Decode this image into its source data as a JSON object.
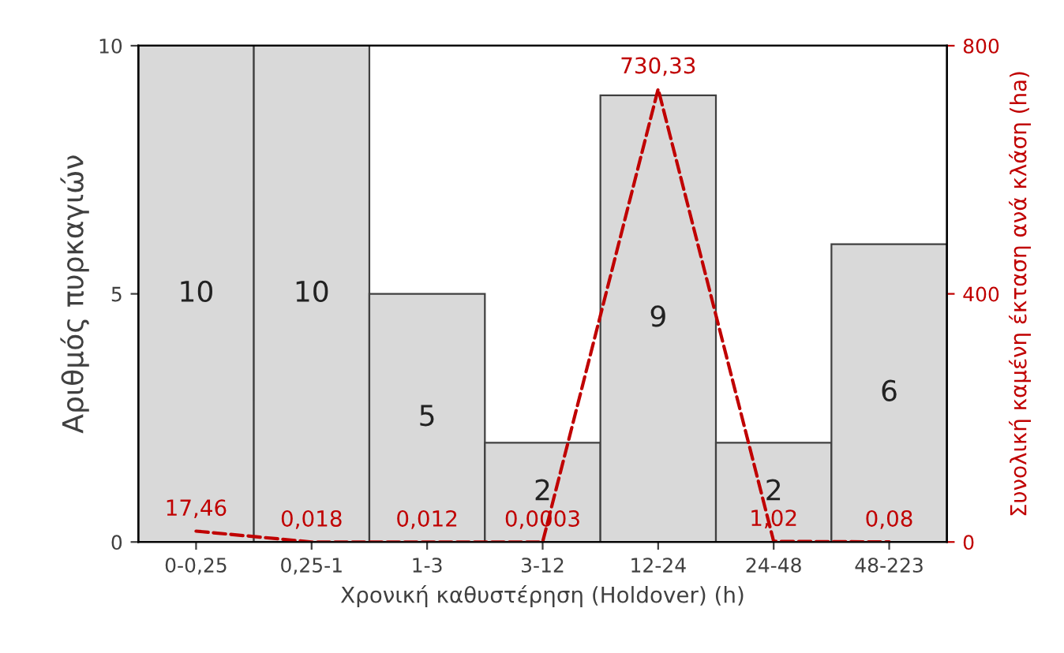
{
  "chart_data": {
    "type": "bar",
    "xlabel": "Χρονική καθυστέρηση (Holdover) (h)",
    "ylabel": "Αριθμός πυρκαγιών",
    "y2label": "Συνολική καμένη έκταση ανά κλάση (ha)",
    "categories": [
      "0-0,25",
      "0,25-1",
      "1-3",
      "3-12",
      "12-24",
      "24-48",
      "48-223"
    ],
    "series": [
      {
        "color": "#d9d9d9",
        "values": [
          10,
          10,
          5,
          2,
          9,
          2,
          6
        ],
        "value_labels": [
          "10",
          "10",
          "5",
          "2",
          "9",
          "2",
          "6"
        ]
      },
      {
        "type": "line",
        "axis": "y2",
        "color": "#c00000",
        "line_style": "dashed",
        "values": [
          17.46,
          0.018,
          0.012,
          0.0003,
          730.33,
          1.02,
          0.08
        ],
        "value_labels": [
          "17,46",
          "0,018",
          "0,012",
          "0,0003",
          "730,33",
          "1,02",
          "0,08"
        ]
      }
    ],
    "ylim": [
      0,
      10
    ],
    "yticks": [
      0,
      5,
      10
    ],
    "y2lim": [
      0,
      800
    ],
    "y2ticks": [
      0,
      400,
      800
    ],
    "grid": false,
    "legend": false
  }
}
